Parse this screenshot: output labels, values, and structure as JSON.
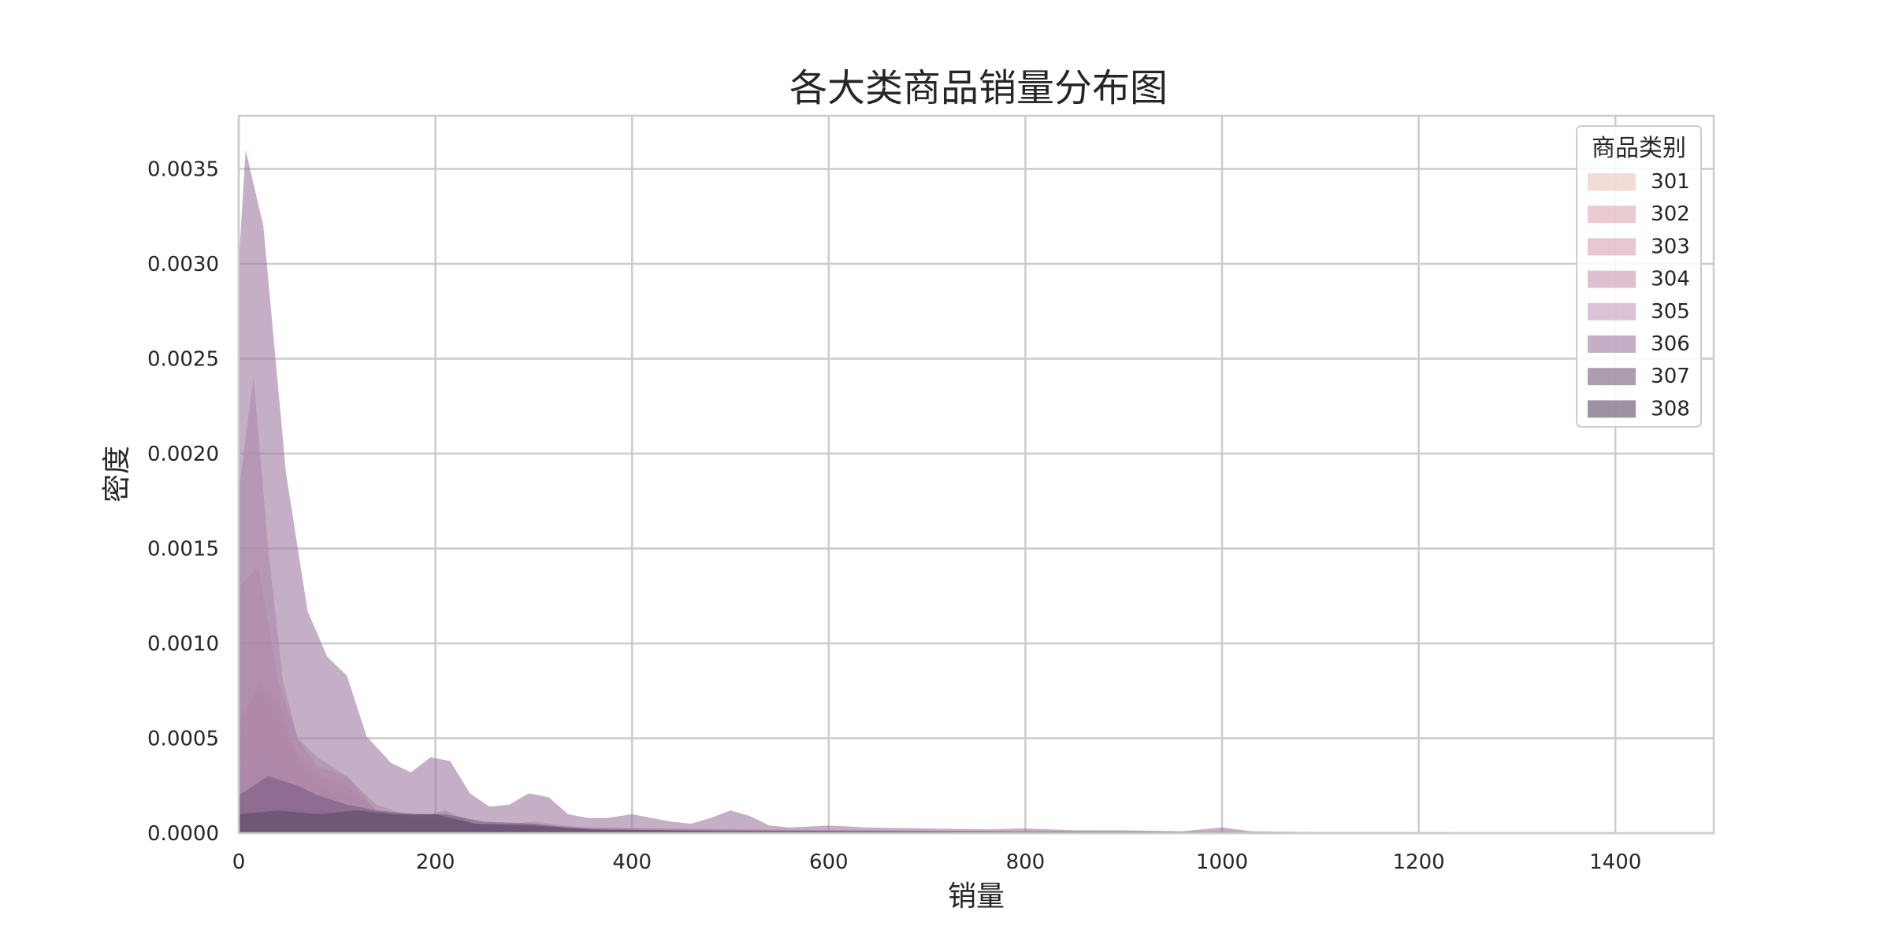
{
  "chart_data": {
    "type": "area",
    "title": "各大类商品销量分布图",
    "xlabel": "销量",
    "ylabel": "密度",
    "xlim": [
      0,
      1500
    ],
    "ylim": [
      0,
      0.00378
    ],
    "x_ticks": [
      0,
      200,
      400,
      600,
      800,
      1000,
      1200,
      1400
    ],
    "y_ticks": [
      0.0,
      0.0005,
      0.001,
      0.0015,
      0.002,
      0.0025,
      0.003,
      0.0035
    ],
    "y_tick_labels": [
      "0.0000",
      "0.0005",
      "0.0010",
      "0.0015",
      "0.0020",
      "0.0025",
      "0.0030",
      "0.0035"
    ],
    "grid": true,
    "legend": {
      "title": "商品类别",
      "position": "top-right"
    },
    "series": [
      {
        "name": "301",
        "color": "#e8c4be",
        "points": [
          [
            0,
            0.0003
          ],
          [
            20,
            0.00042
          ],
          [
            40,
            0.00032
          ],
          [
            60,
            0.0002
          ],
          [
            80,
            0.00012
          ],
          [
            100,
            9e-05
          ],
          [
            130,
            7e-05
          ],
          [
            170,
            5e-05
          ],
          [
            200,
            4e-05
          ],
          [
            250,
            2e-05
          ],
          [
            300,
            1.5e-05
          ],
          [
            400,
            1e-05
          ],
          [
            600,
            5e-06
          ],
          [
            1000,
            3e-06
          ],
          [
            1500,
            0.0
          ]
        ]
      },
      {
        "name": "302",
        "color": "#dca8b2",
        "points": [
          [
            0,
            0.0005
          ],
          [
            20,
            0.0008
          ],
          [
            40,
            0.0007
          ],
          [
            60,
            0.0004
          ],
          [
            80,
            0.00025
          ],
          [
            110,
            0.0002
          ],
          [
            140,
            0.0001
          ],
          [
            180,
            6e-05
          ],
          [
            210,
            8e-05
          ],
          [
            250,
            4e-05
          ],
          [
            300,
            3e-05
          ],
          [
            400,
            2e-05
          ],
          [
            600,
            1e-05
          ],
          [
            1000,
            5e-06
          ],
          [
            1500,
            0.0
          ]
        ]
      },
      {
        "name": "303",
        "color": "#d7a3b2",
        "points": [
          [
            0,
            0.0013
          ],
          [
            20,
            0.0014
          ],
          [
            40,
            0.0008
          ],
          [
            60,
            0.0005
          ],
          [
            80,
            0.00035
          ],
          [
            110,
            0.0003
          ],
          [
            140,
            0.00015
          ],
          [
            180,
            8e-05
          ],
          [
            210,
            6e-05
          ],
          [
            260,
            4e-05
          ],
          [
            300,
            6e-05
          ],
          [
            350,
            3e-05
          ],
          [
            500,
            2e-05
          ],
          [
            800,
            1e-05
          ],
          [
            1500,
            0.0
          ]
        ]
      },
      {
        "name": "304",
        "color": "#c898b0",
        "points": [
          [
            0,
            0.0006
          ],
          [
            20,
            0.00075
          ],
          [
            40,
            0.0006
          ],
          [
            60,
            0.0004
          ],
          [
            80,
            0.0003
          ],
          [
            110,
            0.00025
          ],
          [
            140,
            0.00012
          ],
          [
            180,
            8e-05
          ],
          [
            210,
            0.00012
          ],
          [
            240,
            5e-05
          ],
          [
            300,
            5e-05
          ],
          [
            350,
            3e-05
          ],
          [
            500,
            2e-05
          ],
          [
            800,
            1e-05
          ],
          [
            1500,
            0.0
          ]
        ]
      },
      {
        "name": "305",
        "color": "#c59dba",
        "points": [
          [
            0,
            0.0018
          ],
          [
            15,
            0.0024
          ],
          [
            30,
            0.0015
          ],
          [
            45,
            0.0008
          ],
          [
            60,
            0.0005
          ],
          [
            80,
            0.0004
          ],
          [
            110,
            0.0003
          ],
          [
            140,
            0.00012
          ],
          [
            180,
            6e-05
          ],
          [
            220,
            8e-05
          ],
          [
            260,
            3e-05
          ],
          [
            300,
            4e-05
          ],
          [
            400,
            2e-05
          ],
          [
            600,
            1e-05
          ],
          [
            1500,
            0.0
          ]
        ]
      },
      {
        "name": "306",
        "color": "#9c7aa0",
        "points": [
          [
            0,
            0.003
          ],
          [
            7,
            0.0036
          ],
          [
            25,
            0.0032
          ],
          [
            48,
            0.0019
          ],
          [
            70,
            0.00117
          ],
          [
            90,
            0.00093
          ],
          [
            110,
            0.00083
          ],
          [
            130,
            0.00051
          ],
          [
            155,
            0.00037
          ],
          [
            175,
            0.00032
          ],
          [
            195,
            0.0004
          ],
          [
            215,
            0.00038
          ],
          [
            235,
            0.00021
          ],
          [
            255,
            0.00014
          ],
          [
            275,
            0.00015
          ],
          [
            295,
            0.00021
          ],
          [
            315,
            0.00019
          ],
          [
            335,
            0.0001
          ],
          [
            355,
            8e-05
          ],
          [
            375,
            8e-05
          ],
          [
            400,
            0.0001
          ],
          [
            420,
            8e-05
          ],
          [
            440,
            6e-05
          ],
          [
            460,
            5e-05
          ],
          [
            480,
            8e-05
          ],
          [
            500,
            0.00012
          ],
          [
            520,
            9e-05
          ],
          [
            540,
            4e-05
          ],
          [
            560,
            3e-05
          ],
          [
            600,
            4e-05
          ],
          [
            640,
            3e-05
          ],
          [
            700,
            2.5e-05
          ],
          [
            760,
            2e-05
          ],
          [
            800,
            2.5e-05
          ],
          [
            850,
            1.5e-05
          ],
          [
            900,
            1.5e-05
          ],
          [
            960,
            1e-05
          ],
          [
            1000,
            3e-05
          ],
          [
            1030,
            1e-05
          ],
          [
            1100,
            5e-06
          ],
          [
            1200,
            5e-06
          ],
          [
            1300,
            3e-06
          ],
          [
            1400,
            2e-06
          ],
          [
            1500,
            0.0
          ]
        ]
      },
      {
        "name": "307",
        "color": "#7a5a80",
        "points": [
          [
            0,
            0.0002
          ],
          [
            30,
            0.0003
          ],
          [
            60,
            0.00025
          ],
          [
            80,
            0.0002
          ],
          [
            110,
            0.00015
          ],
          [
            140,
            0.00012
          ],
          [
            180,
            0.0001
          ],
          [
            210,
            0.0001
          ],
          [
            250,
            6e-05
          ],
          [
            300,
            5e-05
          ],
          [
            350,
            2e-05
          ],
          [
            450,
            1.5e-05
          ],
          [
            700,
            1e-05
          ],
          [
            1000,
            5e-06
          ],
          [
            1500,
            0.0
          ]
        ]
      },
      {
        "name": "308",
        "color": "#5a4a66",
        "points": [
          [
            0,
            0.0001
          ],
          [
            40,
            0.00012
          ],
          [
            80,
            0.0001
          ],
          [
            120,
            0.00012
          ],
          [
            160,
            0.0001
          ],
          [
            200,
            0.0001
          ],
          [
            240,
            5e-05
          ],
          [
            300,
            4e-05
          ],
          [
            360,
            2e-05
          ],
          [
            500,
            1e-05
          ],
          [
            800,
            5e-06
          ],
          [
            1500,
            0.0
          ]
        ]
      }
    ]
  }
}
